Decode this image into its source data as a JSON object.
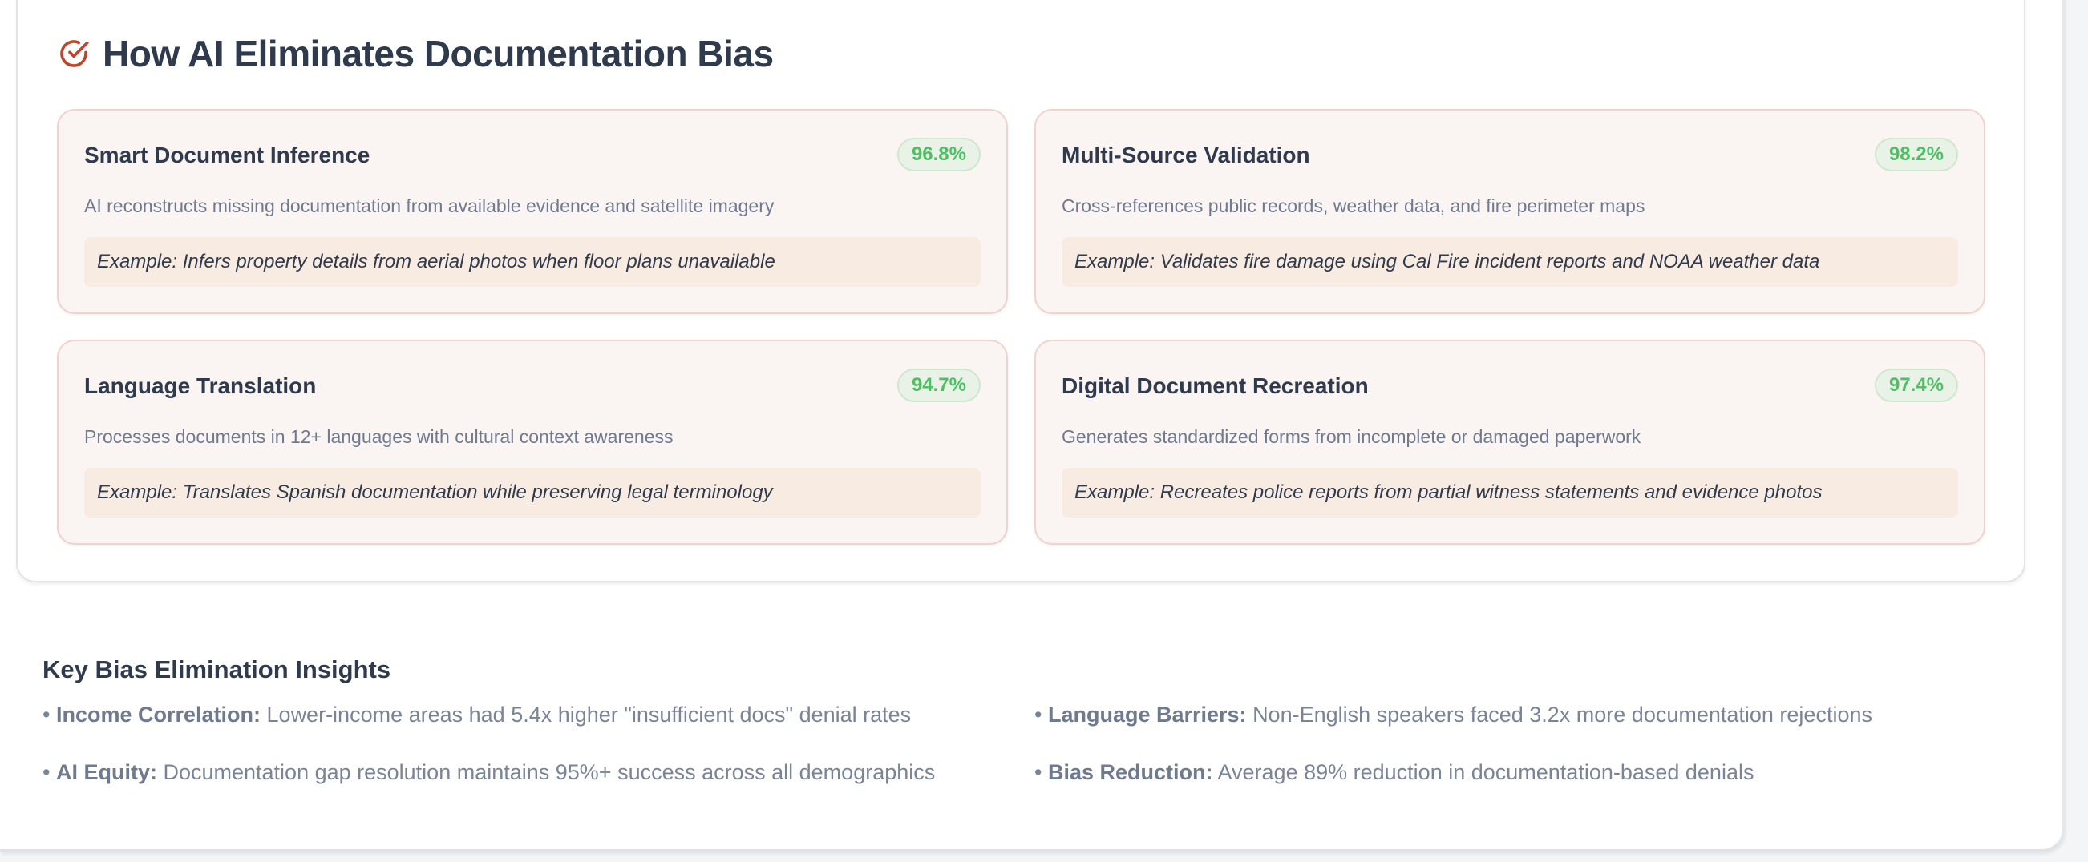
{
  "section": {
    "title": "How AI Eliminates Documentation Bias",
    "icon": "check-circle-icon",
    "accent": "#c0452a"
  },
  "cards": [
    {
      "title": "Smart Document Inference",
      "rate": "96.8%",
      "description": "AI reconstructs missing documentation from available evidence and satellite imagery",
      "example": "Example: Infers property details from aerial photos when floor plans unavailable"
    },
    {
      "title": "Multi-Source Validation",
      "rate": "98.2%",
      "description": "Cross-references public records, weather data, and fire perimeter maps",
      "example": "Example: Validates fire damage using Cal Fire incident reports and NOAA weather data"
    },
    {
      "title": "Language Translation",
      "rate": "94.7%",
      "description": "Processes documents in 12+ languages with cultural context awareness",
      "example": "Example: Translates Spanish documentation while preserving legal terminology"
    },
    {
      "title": "Digital Document Recreation",
      "rate": "97.4%",
      "description": "Generates standardized forms from incomplete or damaged paperwork",
      "example": "Example: Recreates police reports from partial witness statements and evidence photos"
    }
  ],
  "insights": {
    "title": "Key Bias Elimination Insights",
    "items": [
      {
        "label": "Income Correlation:",
        "text": "Lower-income areas had 5.4x higher \"insufficient docs\" denial rates"
      },
      {
        "label": "Language Barriers:",
        "text": "Non-English speakers faced 3.2x more documentation rejections"
      },
      {
        "label": "AI Equity:",
        "text": "Documentation gap resolution maintains 95%+ success across all demographics"
      },
      {
        "label": "Bias Reduction:",
        "text": "Average 89% reduction in documentation-based denials"
      }
    ]
  }
}
